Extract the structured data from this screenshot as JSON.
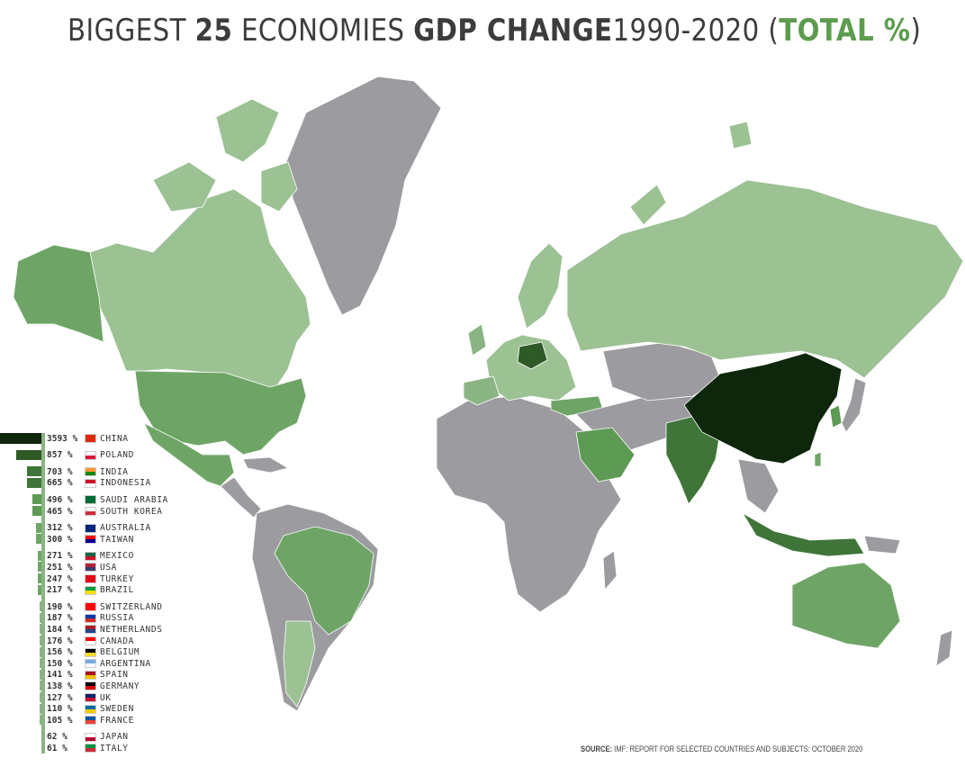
{
  "title": {
    "part1": "BIGGEST ",
    "part2": "25",
    "part3": " ECONOMIES ",
    "part4": "GDP CHANGE",
    "part5": "1990-2020 (",
    "part6": "TOTAL %",
    "part7": ")"
  },
  "colors": {
    "tier1": "#0e260b",
    "tier2": "#2f5a28",
    "tier3": "#3f7538",
    "tier4": "#5d9a53",
    "tier5": "#6ea566",
    "tier6": "#8ab483",
    "tier7": "#9cc294",
    "other": "#9c9ca0",
    "ocean": "#ffffff"
  },
  "legend": [
    {
      "pct": "3593 %",
      "country": "CHINA",
      "value": 3593,
      "flag": [
        "#de2910",
        "#de2910"
      ]
    },
    {
      "pct": "857 %",
      "country": "POLAND",
      "value": 857,
      "flag": [
        "#ffffff",
        "#dc143c"
      ]
    },
    {
      "pct": "703 %",
      "country": "INDIA",
      "value": 703,
      "flag": [
        "#ff9933",
        "#138808"
      ]
    },
    {
      "pct": "665 %",
      "country": "INDONESIA",
      "value": 665,
      "flag": [
        "#ce1126",
        "#ffffff"
      ]
    },
    {
      "pct": "496 %",
      "country": "SAUDI ARABIA",
      "value": 496,
      "flag": [
        "#006c35",
        "#006c35"
      ]
    },
    {
      "pct": "465 %",
      "country": "SOUTH KOREA",
      "value": 465,
      "flag": [
        "#ffffff",
        "#cd2e3a"
      ]
    },
    {
      "pct": "312 %",
      "country": "AUSTRALIA",
      "value": 312,
      "flag": [
        "#00247d",
        "#00247d"
      ]
    },
    {
      "pct": "300 %",
      "country": "TAIWAN",
      "value": 300,
      "flag": [
        "#fe0000",
        "#000095"
      ]
    },
    {
      "pct": "271 %",
      "country": "MEXICO",
      "value": 271,
      "flag": [
        "#006847",
        "#ce1126"
      ]
    },
    {
      "pct": "251 %",
      "country": "USA",
      "value": 251,
      "flag": [
        "#b22234",
        "#3c3b6e"
      ]
    },
    {
      "pct": "247 %",
      "country": "TURKEY",
      "value": 247,
      "flag": [
        "#e30a17",
        "#e30a17"
      ]
    },
    {
      "pct": "217 %",
      "country": "BRAZIL",
      "value": 217,
      "flag": [
        "#009c3b",
        "#ffdf00"
      ]
    },
    {
      "pct": "190 %",
      "country": "SWITZERLAND",
      "value": 190,
      "flag": [
        "#ff0000",
        "#ff0000"
      ]
    },
    {
      "pct": "187 %",
      "country": "RUSSIA",
      "value": 187,
      "flag": [
        "#0039a6",
        "#d52b1e"
      ]
    },
    {
      "pct": "184 %",
      "country": "NETHERLANDS",
      "value": 184,
      "flag": [
        "#ae1c28",
        "#21468b"
      ]
    },
    {
      "pct": "176 %",
      "country": "CANADA",
      "value": 176,
      "flag": [
        "#ff0000",
        "#ffffff"
      ]
    },
    {
      "pct": "156 %",
      "country": "BELGIUM",
      "value": 156,
      "flag": [
        "#000000",
        "#fdda24"
      ]
    },
    {
      "pct": "150 %",
      "country": "ARGENTINA",
      "value": 150,
      "flag": [
        "#74acdf",
        "#ffffff"
      ]
    },
    {
      "pct": "141 %",
      "country": "SPAIN",
      "value": 141,
      "flag": [
        "#aa151b",
        "#f1bf00"
      ]
    },
    {
      "pct": "138 %",
      "country": "GERMANY",
      "value": 138,
      "flag": [
        "#000000",
        "#dd0000"
      ]
    },
    {
      "pct": "127 %",
      "country": "UK",
      "value": 127,
      "flag": [
        "#012169",
        "#c8102e"
      ]
    },
    {
      "pct": "110 %",
      "country": "SWEDEN",
      "value": 110,
      "flag": [
        "#006aa7",
        "#fecc00"
      ]
    },
    {
      "pct": "105 %",
      "country": "FRANCE",
      "value": 105,
      "flag": [
        "#0055a4",
        "#ef4135"
      ]
    },
    {
      "pct": "62 %",
      "country": "JAPAN",
      "value": 62,
      "flag": [
        "#ffffff",
        "#bc002d"
      ]
    },
    {
      "pct": "61 %",
      "country": "ITALY",
      "value": 61,
      "flag": [
        "#009246",
        "#ce2b37"
      ]
    }
  ],
  "source": {
    "label": "SOURCE:",
    "text": " IMF: REPORT FOR SELECTED COUNTRIES AND SUBJECTS: OCTOBER 2020"
  }
}
